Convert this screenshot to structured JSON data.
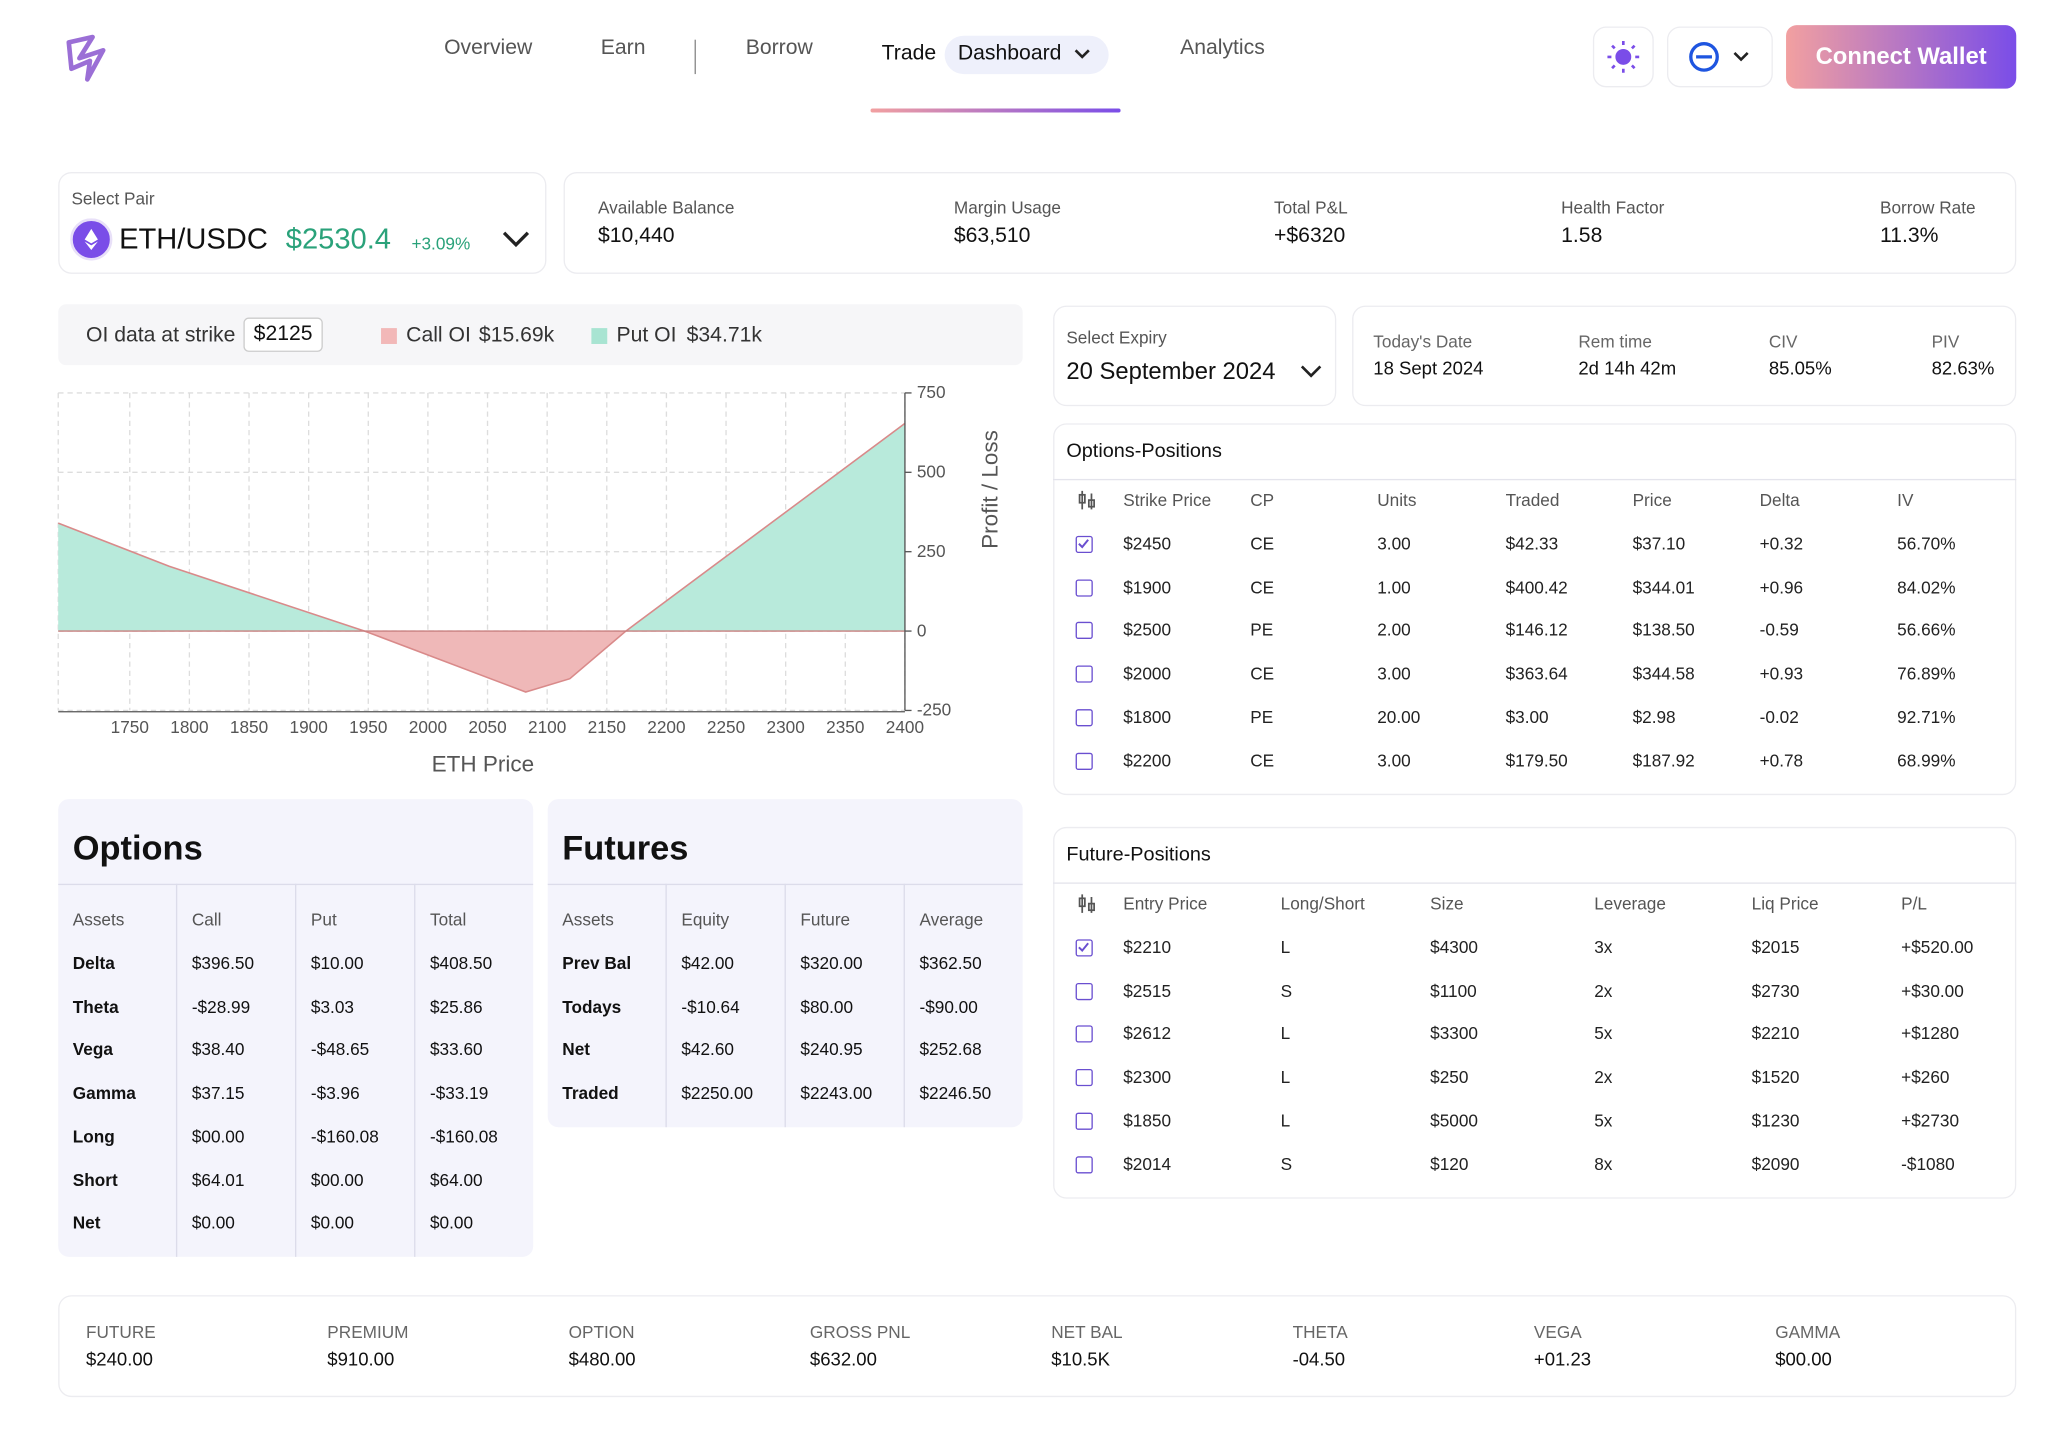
{
  "header": {
    "nav": [
      "Overview",
      "Earn",
      "Borrow"
    ],
    "trade": "Trade",
    "dashboard": "Dashboard",
    "analytics": "Analytics",
    "button": "Connect Wallet"
  },
  "pair": {
    "label": "Select Pair",
    "name": "ETH/USDC",
    "price": "$2530.4",
    "change": "+3.09%"
  },
  "stats": [
    {
      "label": "Available Balance",
      "value": "$10,440"
    },
    {
      "label": "Margin Usage",
      "value": "$63,510"
    },
    {
      "label": "Total P&L",
      "value": "+$6320"
    },
    {
      "label": "Health Factor",
      "value": "1.58"
    },
    {
      "label": "Borrow Rate",
      "value": "11.3%"
    }
  ],
  "oi": {
    "label": "OI data at strike",
    "strike": "$2125",
    "call_label": "Call OI",
    "call": "$15.69k",
    "put_label": "Put OI",
    "put": "$34.71k"
  },
  "chart_data": {
    "type": "area",
    "x": [
      1690,
      1783,
      1947,
      2082,
      2119,
      2166,
      2400
    ],
    "values": [
      340,
      204,
      0,
      -192,
      -150,
      0,
      654
    ],
    "xlim": [
      1690,
      2400
    ],
    "ylim": [
      -250,
      750
    ],
    "xticks": [
      1750,
      1800,
      1850,
      1900,
      1950,
      2000,
      2050,
      2100,
      2150,
      2200,
      2250,
      2300,
      2350,
      2400
    ],
    "yticks": [
      -250,
      0,
      250,
      500,
      750
    ],
    "xlabel": "ETH Price",
    "ylabel": "Profit / Loss",
    "grid": true,
    "colors": {
      "profit": "#b8eadb",
      "loss": "#efb8b8",
      "line": "#d98a8a"
    }
  },
  "expiry": {
    "label": "Select Expiry",
    "value": "20 September 2024",
    "stats": [
      {
        "label": "Today's Date",
        "value": "18 Sept 2024"
      },
      {
        "label": "Rem time",
        "value": "2d 14h 42m"
      },
      {
        "label": "CIV",
        "value": "85.05%"
      },
      {
        "label": "PIV",
        "value": "82.63%"
      }
    ]
  },
  "options_positions": {
    "title": "Options-Positions",
    "columns": [
      "Strike Price",
      "CP",
      "Units",
      "Traded",
      "Price",
      "Delta",
      "IV"
    ],
    "rows": [
      [
        "$2450",
        "CE",
        "3.00",
        "$42.33",
        "$37.10",
        "+0.32",
        "56.70%"
      ],
      [
        "$1900",
        "CE",
        "1.00",
        "$400.42",
        "$344.01",
        "+0.96",
        "84.02%"
      ],
      [
        "$2500",
        "PE",
        "2.00",
        "$146.12",
        "$138.50",
        "-0.59",
        "56.66%"
      ],
      [
        "$2000",
        "CE",
        "3.00",
        "$363.64",
        "$344.58",
        "+0.93",
        "76.89%"
      ],
      [
        "$1800",
        "PE",
        "20.00",
        "$3.00",
        "$2.98",
        "-0.02",
        "92.71%"
      ],
      [
        "$2200",
        "CE",
        "3.00",
        "$179.50",
        "$187.92",
        "+0.78",
        "68.99%"
      ]
    ],
    "checked": [
      true,
      false,
      false,
      false,
      false,
      false
    ]
  },
  "future_positions": {
    "title": "Future-Positions",
    "columns": [
      "Entry Price",
      "Long/Short",
      "Size",
      "Leverage",
      "Liq Price",
      "P/L"
    ],
    "rows": [
      [
        "$2210",
        "L",
        "$4300",
        "3x",
        "$2015",
        "+$520.00"
      ],
      [
        "$2515",
        "S",
        "$1100",
        "2x",
        "$2730",
        "+$30.00"
      ],
      [
        "$2612",
        "L",
        "$3300",
        "5x",
        "$2210",
        "+$1280"
      ],
      [
        "$2300",
        "L",
        "$250",
        "2x",
        "$1520",
        "+$260"
      ],
      [
        "$1850",
        "L",
        "$5000",
        "5x",
        "$1230",
        "+$2730"
      ],
      [
        "$2014",
        "S",
        "$120",
        "8x",
        "$2090",
        "-$1080"
      ]
    ],
    "checked": [
      true,
      false,
      false,
      false,
      false,
      false
    ]
  },
  "options_greeks": {
    "title": "Options",
    "columns": [
      "Assets",
      "Call",
      "Put",
      "Total"
    ],
    "rows": [
      [
        "Delta",
        "$396.50",
        "$10.00",
        "$408.50"
      ],
      [
        "Theta",
        "-$28.99",
        "$3.03",
        "$25.86"
      ],
      [
        "Vega",
        "$38.40",
        "-$48.65",
        "$33.60"
      ],
      [
        "Gamma",
        "$37.15",
        "-$3.96",
        "-$33.19"
      ],
      [
        "Long",
        "$00.00",
        "-$160.08",
        "-$160.08"
      ],
      [
        "Short",
        "$64.01",
        "$00.00",
        "$64.00"
      ],
      [
        "Net",
        "$0.00",
        "$0.00",
        "$0.00"
      ]
    ]
  },
  "futures": {
    "title": "Futures",
    "columns": [
      "Assets",
      "Equity",
      "Future",
      "Average"
    ],
    "rows": [
      [
        "Prev Bal",
        "$42.00",
        "$320.00",
        "$362.50"
      ],
      [
        "Todays",
        "-$10.64",
        "$80.00",
        "-$90.00"
      ],
      [
        "Net",
        "$42.60",
        "$240.95",
        "$252.68"
      ],
      [
        "Traded",
        "$2250.00",
        "$2243.00",
        "$2246.50"
      ]
    ]
  },
  "footer": [
    {
      "label": "FUTURE",
      "value": "$240.00"
    },
    {
      "label": "PREMIUM",
      "value": "$910.00"
    },
    {
      "label": "OPTION",
      "value": "$480.00"
    },
    {
      "label": "GROSS PNL",
      "value": "$632.00"
    },
    {
      "label": "NET BAL",
      "value": "$10.5K"
    },
    {
      "label": "THETA",
      "value": "-04.50"
    },
    {
      "label": "VEGA",
      "value": "+01.23"
    },
    {
      "label": "GAMMA",
      "value": "$00.00"
    }
  ]
}
